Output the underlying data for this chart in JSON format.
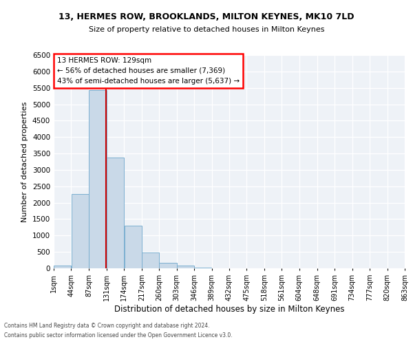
{
  "title1": "13, HERMES ROW, BROOKLANDS, MILTON KEYNES, MK10 7LD",
  "title2": "Size of property relative to detached houses in Milton Keynes",
  "xlabel": "Distribution of detached houses by size in Milton Keynes",
  "ylabel": "Number of detached properties",
  "footer1": "Contains HM Land Registry data © Crown copyright and database right 2024.",
  "footer2": "Contains public sector information licensed under the Open Government Licence v3.0.",
  "annotation_title": "13 HERMES ROW: 129sqm",
  "annotation_line1": "← 56% of detached houses are smaller (7,369)",
  "annotation_line2": "43% of semi-detached houses are larger (5,637) →",
  "property_size": 129,
  "bar_color": "#c9d9e8",
  "bar_edge_color": "#7aafd0",
  "vline_color": "#cc0000",
  "background_color": "#eef2f7",
  "bins": [
    1,
    44,
    87,
    131,
    174,
    217,
    260,
    303,
    346,
    389,
    432,
    475,
    518,
    561,
    604,
    648,
    691,
    734,
    777,
    820,
    863
  ],
  "bin_labels": [
    "1sqm",
    "44sqm",
    "87sqm",
    "131sqm",
    "174sqm",
    "217sqm",
    "260sqm",
    "303sqm",
    "346sqm",
    "389sqm",
    "432sqm",
    "475sqm",
    "518sqm",
    "561sqm",
    "604sqm",
    "648sqm",
    "691sqm",
    "734sqm",
    "777sqm",
    "820sqm",
    "863sqm"
  ],
  "bar_heights": [
    75,
    2270,
    5430,
    3380,
    1300,
    490,
    175,
    80,
    30,
    0,
    0,
    0,
    0,
    0,
    0,
    0,
    0,
    0,
    0,
    0
  ],
  "ylim": [
    0,
    6500
  ],
  "yticks": [
    0,
    500,
    1000,
    1500,
    2000,
    2500,
    3000,
    3500,
    4000,
    4500,
    5000,
    5500,
    6000,
    6500
  ]
}
